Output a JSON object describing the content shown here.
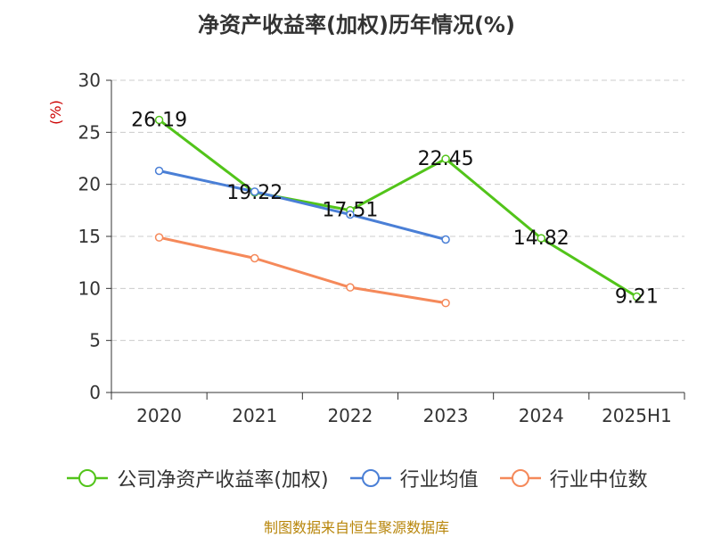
{
  "chart_data": {
    "type": "line",
    "title": "净资产收益率(加权)历年情况(%)",
    "ylabel": "(%)",
    "xlabel": "",
    "categories": [
      "2020",
      "2021",
      "2022",
      "2023",
      "2024",
      "2025H1"
    ],
    "ylim": [
      0,
      30
    ],
    "yticks": [
      0,
      5,
      10,
      15,
      20,
      25,
      30
    ],
    "grid": true,
    "legend_position": "bottom",
    "series": [
      {
        "name": "公司净资产收益率(加权)",
        "color": "#52c41a",
        "values": [
          26.19,
          19.22,
          17.51,
          22.45,
          14.82,
          9.21
        ],
        "labels": [
          "26.19",
          "19.22",
          "17.51",
          "22.45",
          "14.82",
          "9.21"
        ]
      },
      {
        "name": "行业均值",
        "color": "#4a7fd6",
        "values": [
          21.3,
          19.3,
          17.1,
          14.7,
          null,
          null
        ]
      },
      {
        "name": "行业中位数",
        "color": "#f5895a",
        "values": [
          14.9,
          12.9,
          10.1,
          8.6,
          null,
          null
        ]
      }
    ]
  },
  "source": "制图数据来自恒生聚源数据库"
}
